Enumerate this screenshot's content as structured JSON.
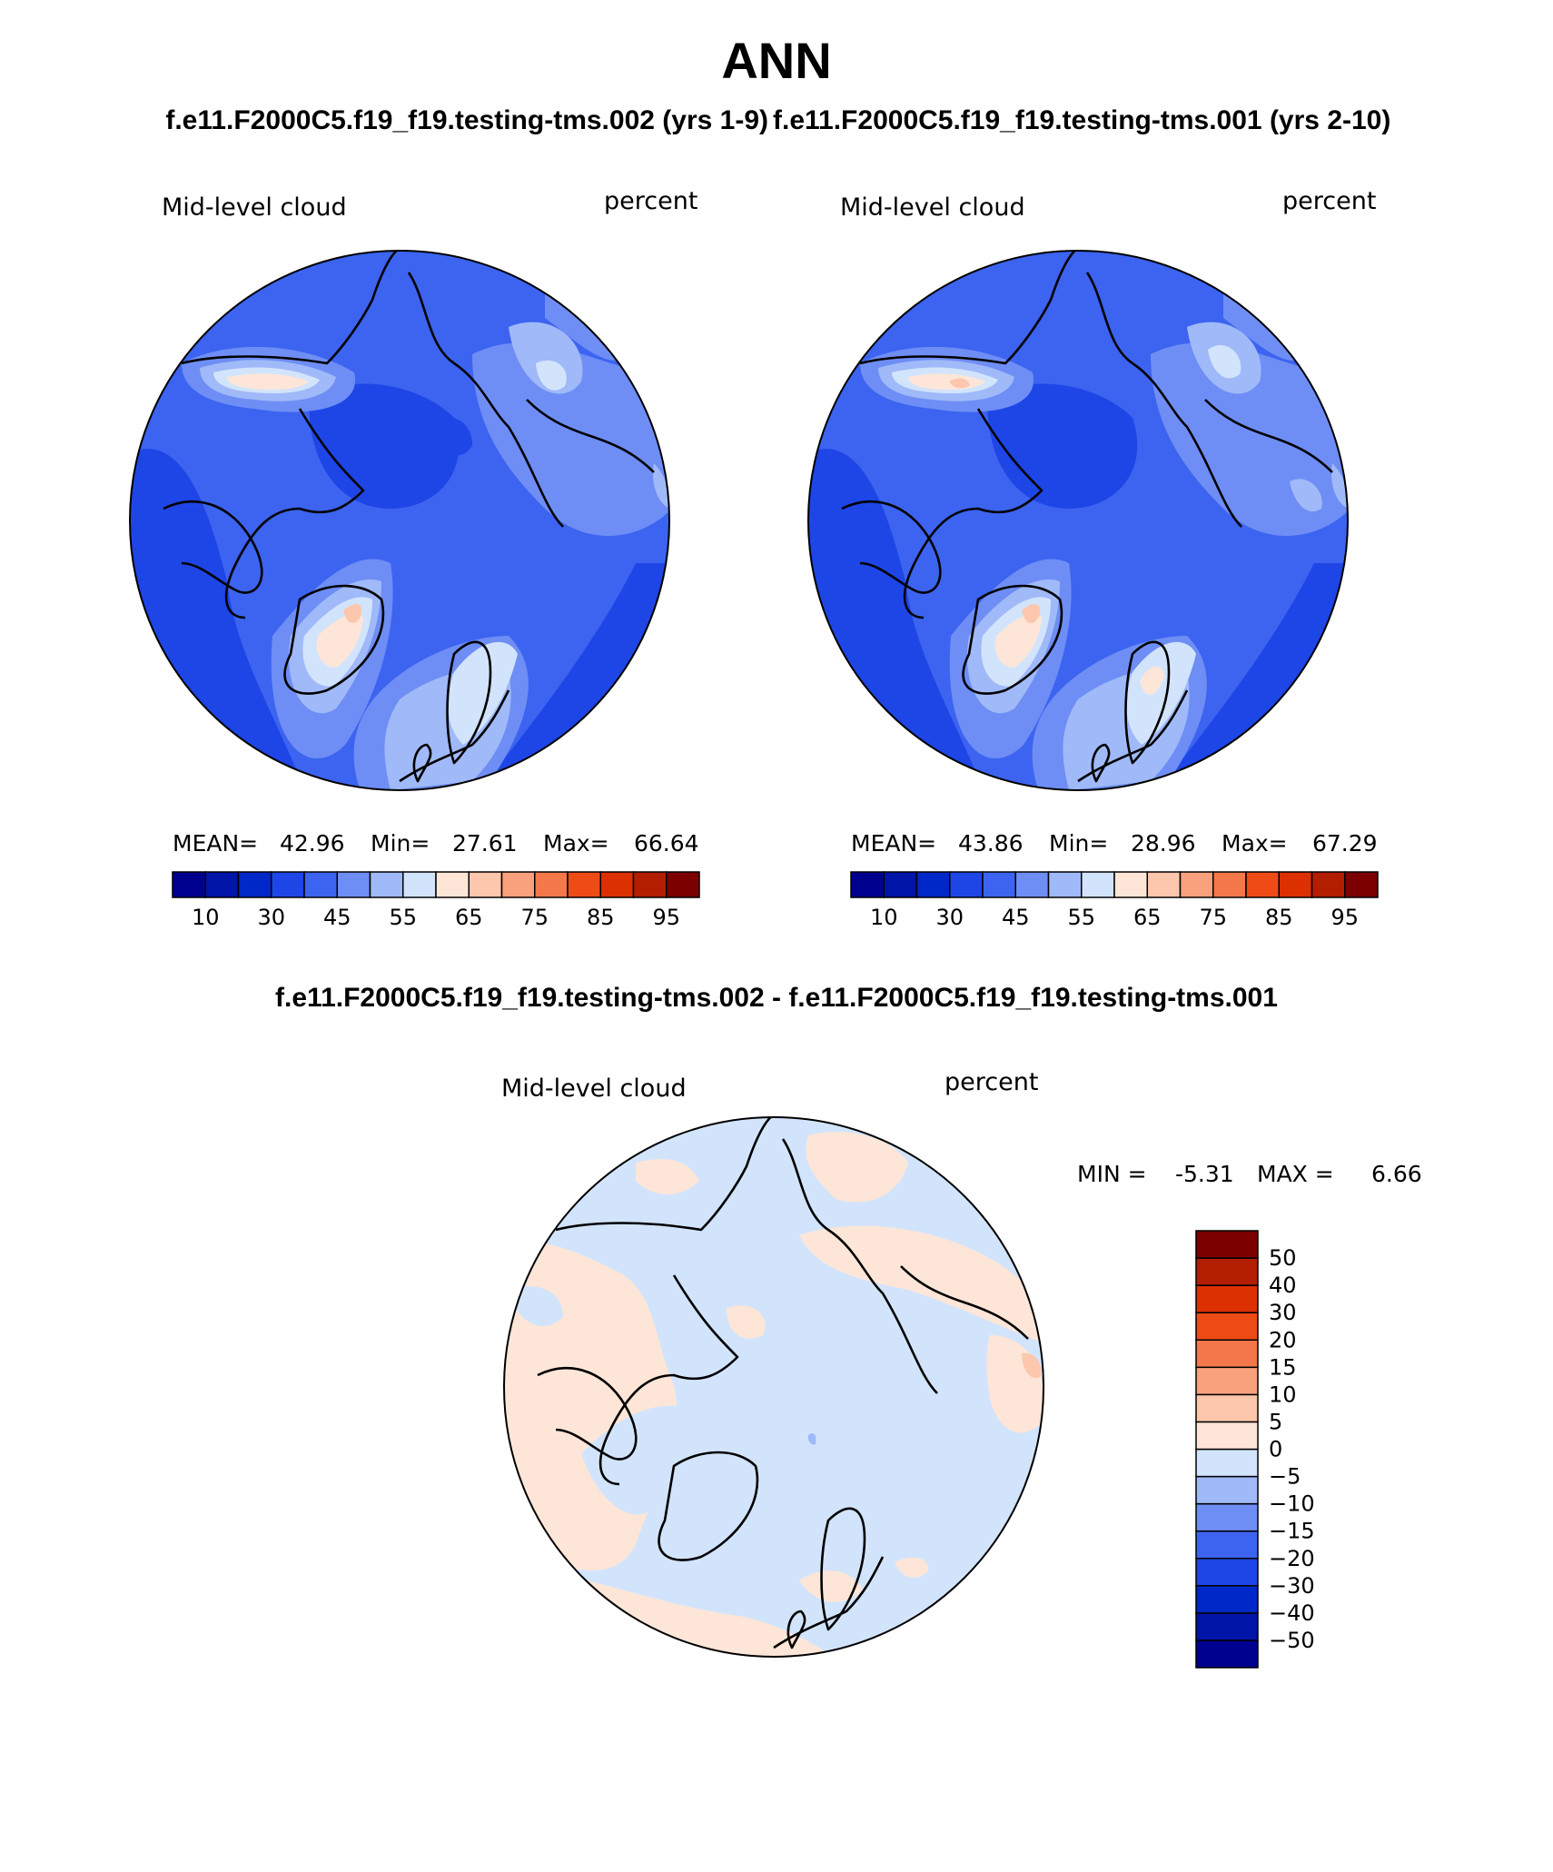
{
  "figure": {
    "title": "ANN",
    "panel_titles": {
      "left": "f.e11.F2000C5.f19_f19.testing-tms.002 (yrs 1-9)",
      "right": "f.e11.F2000C5.f19_f19.testing-tms.001 (yrs 2-10)",
      "diff": "f.e11.F2000C5.f19_f19.testing-tms.002 - f.e11.F2000C5.f19_f19.testing-tms.001"
    }
  },
  "panels": {
    "left": {
      "variable": "Mid-level cloud",
      "units": "percent",
      "stats": {
        "mean_label": "MEAN=",
        "mean": "42.96",
        "min_label": "Min=",
        "min": "27.61",
        "max_label": "Max=",
        "max": "66.64"
      }
    },
    "right": {
      "variable": "Mid-level cloud",
      "units": "percent",
      "stats": {
        "mean_label": "MEAN=",
        "mean": "43.86",
        "min_label": "Min=",
        "min": "28.96",
        "max_label": "Max=",
        "max": "67.29"
      }
    },
    "diff": {
      "variable": "Mid-level cloud",
      "units": "percent",
      "stats": {
        "min_label": "MIN =",
        "min": "-5.31",
        "max_label": "MAX =",
        "max": "6.66"
      }
    }
  },
  "colorbars": {
    "abs": {
      "colors": [
        "#00008f",
        "#0014a8",
        "#0028c8",
        "#1e46e6",
        "#3c64f0",
        "#6e8ef5",
        "#a0b9f8",
        "#d2e4fc",
        "#fde6d8",
        "#fcc7ad",
        "#f9a17d",
        "#f47849",
        "#ef4b17",
        "#dc3000",
        "#b41e00",
        "#7d0000"
      ],
      "labels": [
        "10",
        "30",
        "45",
        "55",
        "65",
        "75",
        "85",
        "95"
      ]
    },
    "diff": {
      "colors": [
        "#00008f",
        "#0014a8",
        "#0028c8",
        "#1e46e6",
        "#3c64f0",
        "#6e8ef5",
        "#a0b9f8",
        "#d2e4fc",
        "#fde6d8",
        "#fcc7ad",
        "#f9a17d",
        "#f47849",
        "#ef4b17",
        "#dc3000",
        "#b41e00",
        "#7d0000"
      ],
      "labels": [
        "50",
        "40",
        "30",
        "20",
        "15",
        "10",
        "5",
        "0",
        "−5",
        "−10",
        "−15",
        "−20",
        "−30",
        "−40",
        "−50"
      ]
    }
  }
}
